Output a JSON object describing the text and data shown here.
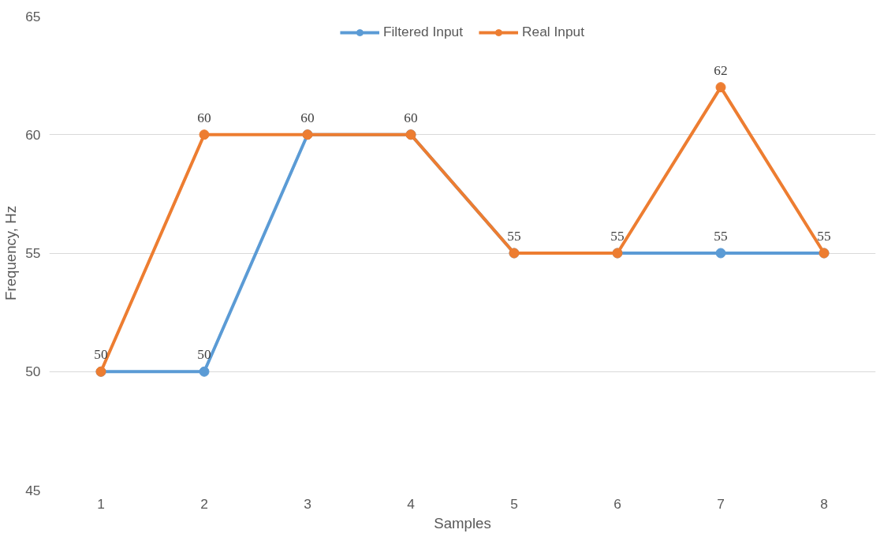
{
  "chart_data": {
    "type": "line",
    "xlabel": "Samples",
    "ylabel": "Frequency, Hz",
    "categories": [
      "1",
      "2",
      "3",
      "4",
      "5",
      "6",
      "7",
      "8"
    ],
    "series": [
      {
        "name": "Filtered Input",
        "color": "#5b9bd5",
        "values": [
          50,
          50,
          60,
          60,
          55,
          55,
          55,
          55
        ],
        "value_labels": [
          "50",
          "50",
          "60",
          "60",
          "55",
          "55",
          "55",
          "55"
        ]
      },
      {
        "name": "Real Input",
        "color": "#ed7d31",
        "values": [
          50,
          60,
          60,
          60,
          55,
          55,
          62,
          55
        ],
        "value_labels": [
          null,
          "60",
          null,
          null,
          null,
          null,
          "62",
          null
        ]
      }
    ],
    "ylim": [
      45,
      65
    ],
    "yticks": [
      45,
      50,
      55,
      60,
      65
    ],
    "grid": "y",
    "legend": "top",
    "marker": "circle",
    "line_style": "solid"
  }
}
